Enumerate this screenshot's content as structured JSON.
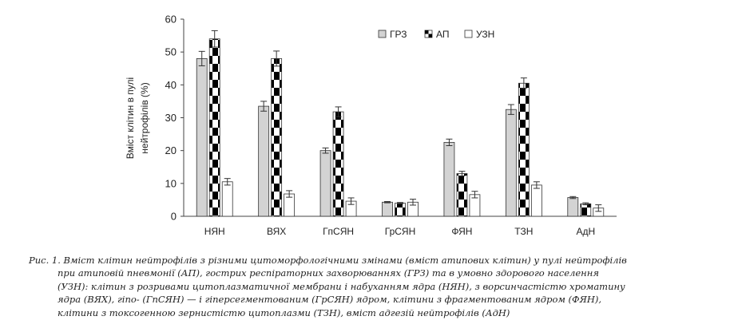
{
  "chart_data": {
    "type": "bar",
    "categories": [
      "НЯН",
      "ВЯХ",
      "ГпСЯН",
      "ГрСЯН",
      "ФЯН",
      "ТЗН",
      "АдН"
    ],
    "ylabel_lines": [
      "Вміст клітин в пулі",
      "нейтрофілів (%)"
    ],
    "ylim": [
      0,
      60
    ],
    "yticks": [
      0,
      10,
      20,
      30,
      40,
      50,
      60
    ],
    "grid": false,
    "legend_position": "top-right",
    "series": [
      {
        "name": "ГРЗ",
        "values": [
          48,
          33.5,
          20,
          4.3,
          22.5,
          32.5,
          5.7
        ],
        "errors": [
          2.2,
          1.5,
          0.8,
          0.2,
          1.0,
          1.5,
          0.3
        ],
        "fill": "#d3d3d3",
        "pattern": "solid"
      },
      {
        "name": "АП",
        "values": [
          54,
          48,
          31.8,
          4.0,
          13,
          40.5,
          3.8
        ],
        "errors": [
          2.5,
          2.3,
          1.5,
          0.2,
          0.7,
          1.6,
          0.3
        ],
        "fill": "#000000",
        "pattern": "checker"
      },
      {
        "name": "УЗН",
        "values": [
          10.5,
          6.8,
          4.6,
          4.3,
          6.6,
          9.5,
          2.5
        ],
        "errors": [
          1.0,
          1.0,
          1.0,
          0.9,
          1.0,
          1.0,
          1.0
        ],
        "fill": "#ffffff",
        "pattern": "solid"
      }
    ]
  },
  "caption": {
    "lines": [
      "Рис. 1. Вміст клітин нейтрофілів з різними цитоморфологічними змінами (вміст атипових клітин) у пулі нейтрофілів",
      "при атиповій пневмонії (АП), гострих респіраторних захворюваннях (ГРЗ) та в умовно здорового населення",
      "(УЗН): клітин з розривами цитоплазматичної мембрани і набуханням ядра (НЯН), з ворсинчастістю хроматину",
      "ядра (ВЯХ), гіпо- (ГпСЯН) — і гіперсегментованим (ГрСЯН) ядром, клітини з фрагментованим ядром (ФЯН),",
      "клітини з токсогенною зернистістю цитоплазми (ТЗН), вміст адгезій нейтрофілів (АдН)"
    ]
  }
}
